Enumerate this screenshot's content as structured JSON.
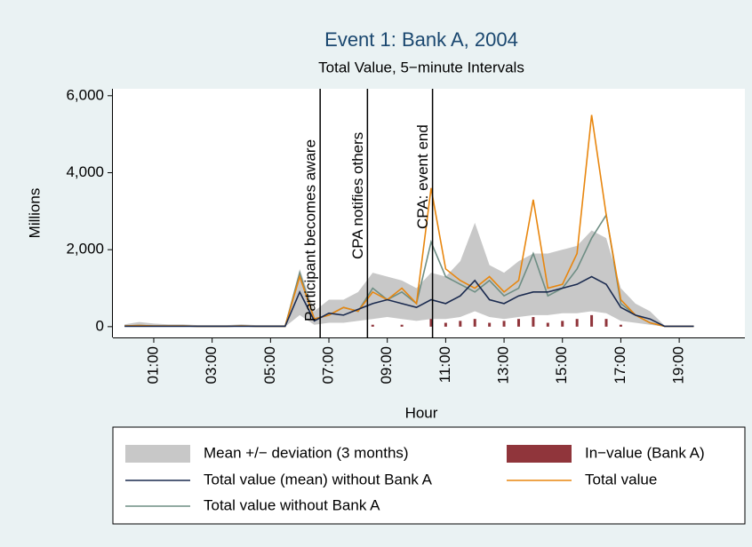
{
  "chart_data": {
    "type": "line",
    "title": "Event 1: Bank A, 2004",
    "subtitle": "Total Value, 5−minute Intervals",
    "x_label": "Hour",
    "y_label": "Millions",
    "xlim": [
      -0.4,
      21.25
    ],
    "ylim": [
      -280,
      6180
    ],
    "xticks": [
      {
        "value": 1,
        "label": "01:00"
      },
      {
        "value": 3,
        "label": "03:00"
      },
      {
        "value": 5,
        "label": "05:00"
      },
      {
        "value": 7,
        "label": "07:00"
      },
      {
        "value": 9,
        "label": "09:00"
      },
      {
        "value": 11,
        "label": "11:00"
      },
      {
        "value": 13,
        "label": "13:00"
      },
      {
        "value": 15,
        "label": "15:00"
      },
      {
        "value": 17,
        "label": "17:00"
      },
      {
        "value": 19,
        "label": "19:00"
      }
    ],
    "yticks": [
      {
        "value": 0,
        "label": "0"
      },
      {
        "value": 2000,
        "label": "2,000"
      },
      {
        "value": 4000,
        "label": "4,000"
      },
      {
        "value": 6000,
        "label": "6,000"
      }
    ],
    "x": [
      0,
      0.5,
      1,
      1.5,
      2,
      2.5,
      3,
      3.5,
      4,
      4.5,
      5,
      5.5,
      6,
      6.5,
      7,
      7.5,
      8,
      8.5,
      9,
      9.5,
      10,
      10.5,
      11,
      11.5,
      12,
      12.5,
      13,
      13.5,
      14,
      14.5,
      15,
      15.5,
      16,
      16.5,
      17,
      17.5,
      18,
      18.5,
      19,
      19.5
    ],
    "band": {
      "name": "Mean +/− deviation (3 months)",
      "color": "#c8c8c8",
      "low": [
        0,
        0,
        0,
        0,
        0,
        0,
        0,
        0,
        0,
        0,
        0,
        0,
        300,
        50,
        100,
        100,
        150,
        200,
        250,
        200,
        150,
        200,
        200,
        250,
        400,
        250,
        200,
        250,
        300,
        300,
        350,
        350,
        400,
        350,
        150,
        100,
        50,
        0,
        0,
        0
      ],
      "high": [
        60,
        120,
        80,
        60,
        60,
        40,
        40,
        40,
        60,
        40,
        40,
        40,
        1500,
        400,
        700,
        700,
        900,
        1400,
        1300,
        1200,
        1000,
        1400,
        1300,
        1700,
        2700,
        1600,
        1400,
        1700,
        1900,
        1900,
        2000,
        2100,
        2500,
        2300,
        1000,
        600,
        400,
        30,
        30,
        30
      ]
    },
    "bars": {
      "name": "In−value (Bank A)",
      "color": "#90353b",
      "values": [
        0,
        0,
        0,
        0,
        0,
        0,
        0,
        0,
        0,
        0,
        0,
        0,
        0,
        0,
        0,
        0,
        0,
        50,
        0,
        50,
        0,
        200,
        100,
        150,
        200,
        100,
        150,
        200,
        250,
        100,
        150,
        200,
        300,
        200,
        50,
        0,
        0,
        0,
        0,
        0
      ]
    },
    "series": [
      {
        "name": "Total value (mean) without Bank A",
        "color": "#1a2a4f",
        "values": [
          10,
          10,
          10,
          10,
          10,
          10,
          10,
          10,
          10,
          10,
          10,
          10,
          900,
          150,
          350,
          300,
          450,
          600,
          700,
          600,
          500,
          700,
          600,
          800,
          1200,
          700,
          600,
          800,
          900,
          900,
          1000,
          1100,
          1300,
          1100,
          500,
          300,
          200,
          10,
          10,
          10
        ]
      },
      {
        "name": "Total value",
        "color": "#e8860e",
        "values": [
          20,
          30,
          20,
          20,
          20,
          10,
          10,
          10,
          20,
          10,
          10,
          10,
          1300,
          200,
          300,
          500,
          400,
          900,
          700,
          1000,
          600,
          3600,
          1500,
          1200,
          1000,
          1300,
          900,
          1200,
          3300,
          1000,
          1100,
          1900,
          5500,
          2900,
          700,
          300,
          100,
          10,
          10,
          10
        ]
      },
      {
        "name": "Total value without Bank A",
        "color": "#6e8e84",
        "values": [
          20,
          30,
          20,
          20,
          20,
          10,
          10,
          10,
          20,
          10,
          10,
          10,
          1400,
          200,
          300,
          500,
          400,
          1000,
          700,
          900,
          600,
          2200,
          1300,
          1100,
          900,
          1200,
          800,
          1000,
          1900,
          800,
          1000,
          1500,
          2300,
          2900,
          600,
          300,
          100,
          10,
          10,
          10
        ]
      }
    ],
    "annotations": [
      {
        "x": 6.7,
        "label": "Participant becomes aware"
      },
      {
        "x": 8.32,
        "label": "CPA notifies others"
      },
      {
        "x": 10.55,
        "label": "CPA: event end"
      }
    ]
  }
}
